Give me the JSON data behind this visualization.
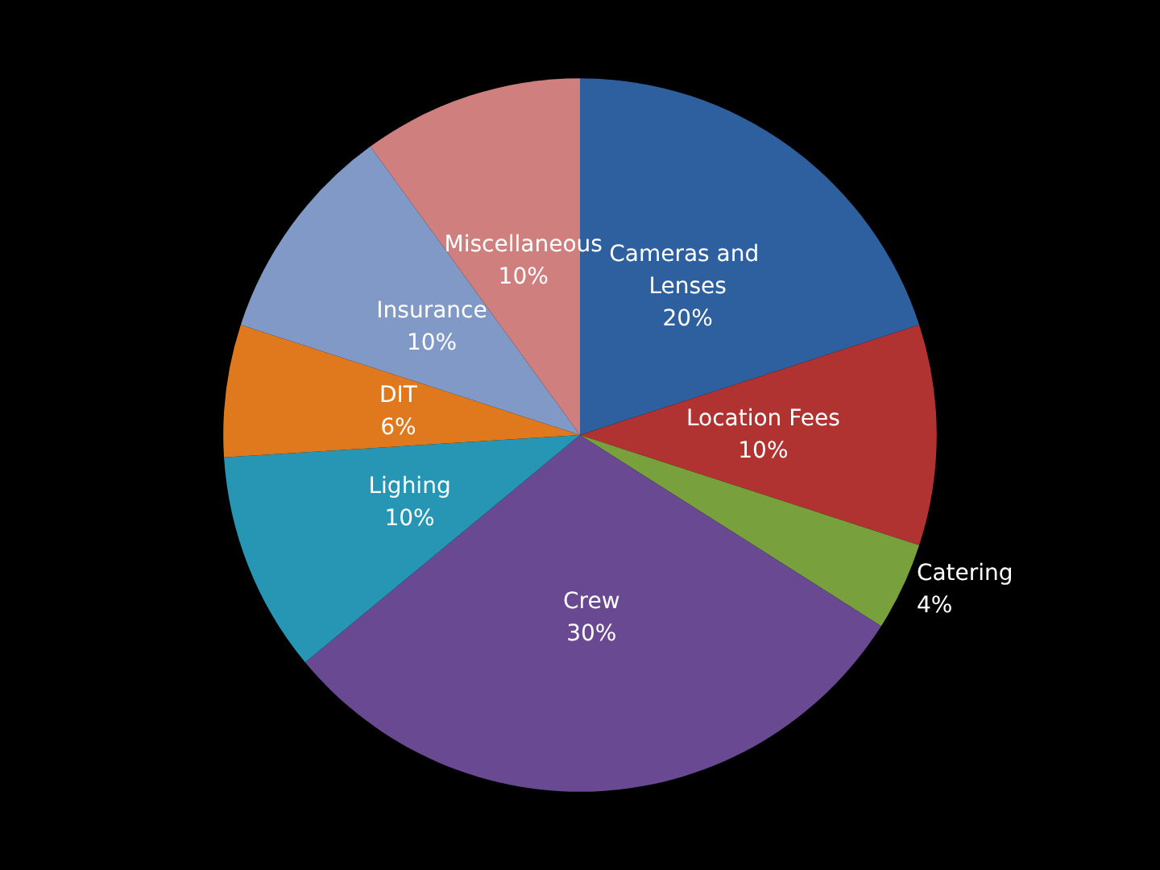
{
  "chart_data": {
    "type": "pie",
    "categories": [
      "Cameras and Lenses",
      "Location Fees",
      "Catering",
      "Crew",
      "Lighing",
      "DIT",
      "Insurance",
      "Miscellaneous"
    ],
    "values": [
      20,
      10,
      4,
      30,
      10,
      6,
      10,
      10
    ],
    "value_labels": [
      "20%",
      "10%",
      "4%",
      "30%",
      "10%",
      "6%",
      "10%",
      "10%"
    ],
    "colors": [
      "#2e5f9e",
      "#b03231",
      "#78a03c",
      "#694a92",
      "#2696b4",
      "#e0781e",
      "#8199c6",
      "#cf7f7e"
    ],
    "legend": false
  }
}
